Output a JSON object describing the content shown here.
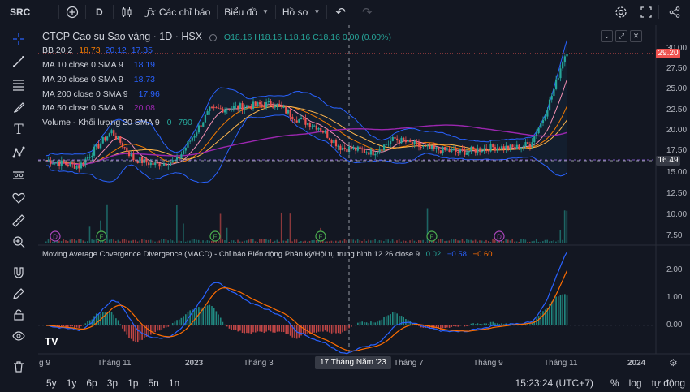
{
  "topbar": {
    "symbol": "SRC",
    "add_icon": "plus-circle-icon",
    "interval": "D",
    "compare_icon": "candles-icon",
    "indicators_label": "Các chỉ báo",
    "chart_type_label": "Biểu đồ",
    "profile_label": "Hồ sơ"
  },
  "header": {
    "title": "CTCP Cao su Sao vàng · 1D · HSX",
    "ohlc": "O18.16 H18.16 L18.16 C18.16 0.00 (0.00%)"
  },
  "legends": {
    "bb": {
      "name": "BB 20 2",
      "v1": "18.73",
      "v2": "20.12",
      "v3": "17.35"
    },
    "ma1": {
      "name": "MA 10 close 0 SMA 9",
      "value": "18.19"
    },
    "ma2": {
      "name": "MA 20 close 0 SMA 9",
      "value": "18.73"
    },
    "ma3": {
      "name": "MA 200 close 0 SMA 9",
      "value": "17.96"
    },
    "ma4": {
      "name": "MA 50 close 0 SMA 9",
      "value": "20.08"
    },
    "volume": {
      "name": "Volume - Khối lượng 20 SMA 9",
      "value": "0",
      "value2": "790"
    },
    "macd": {
      "name": "Moving Average Covergence Divergence (MACD) - Chỉ báo Biến động Phân kỳ/Hội tụ trung bình 12 26 close 9",
      "v1": "0.02",
      "v2": "−0.58",
      "v3": "−0.60"
    }
  },
  "price_axis": [
    "30.00",
    "27.50",
    "25.00",
    "22.50",
    "20.00",
    "17.50",
    "15.00",
    "12.50",
    "10.00",
    "7.50"
  ],
  "price_tags": {
    "last": "29.20",
    "cursor": "16.49"
  },
  "macd_axis": [
    "2.00",
    "1.00",
    "0.00",
    "-1.00"
  ],
  "time_axis": [
    "g 9",
    "Tháng 11",
    "2023",
    "Tháng 3",
    "Tháng 7",
    "Tháng 9",
    "Tháng 11",
    "2024"
  ],
  "crosshair_date": "17 Tháng Năm '23",
  "events": [
    "D",
    "F",
    "F",
    "F",
    "F",
    "D"
  ],
  "logo": "TV",
  "bottombar": {
    "ranges": [
      "5y",
      "1y",
      "6p",
      "3p",
      "1p",
      "5n",
      "1n"
    ],
    "time": "15:23:24 (UTC+7)",
    "percent": "%",
    "log": "log",
    "auto": "tự động"
  },
  "colors": {
    "up": "#26a69a",
    "down": "#ef5350",
    "bb_basis": "#f57c00",
    "bb_band": "#2962ff",
    "ma10": "#f48fb1",
    "ma20": "#ff9800",
    "ma200": "#9c27b0",
    "ma50": "#7e57c2",
    "macd": "#2962ff",
    "signal": "#ff6d00"
  }
}
